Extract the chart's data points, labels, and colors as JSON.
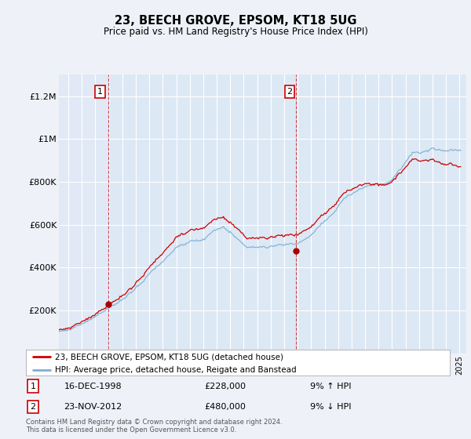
{
  "title": "23, BEECH GROVE, EPSOM, KT18 5UG",
  "subtitle": "Price paid vs. HM Land Registry's House Price Index (HPI)",
  "legend_line1": "23, BEECH GROVE, EPSOM, KT18 5UG (detached house)",
  "legend_line2": "HPI: Average price, detached house, Reigate and Banstead",
  "annotation1_label": "1",
  "annotation1_date": "16-DEC-1998",
  "annotation1_price": "£228,000",
  "annotation1_hpi": "9% ↑ HPI",
  "annotation2_label": "2",
  "annotation2_date": "23-NOV-2012",
  "annotation2_price": "£480,000",
  "annotation2_hpi": "9% ↓ HPI",
  "footer": "Contains HM Land Registry data © Crown copyright and database right 2024.\nThis data is licensed under the Open Government Licence v3.0.",
  "sale1_year": 1998.958,
  "sale1_value": 228000,
  "sale2_year": 2012.9,
  "sale2_value": 480000,
  "hpi_color": "#7bafd4",
  "price_color": "#cc0000",
  "sale_dot_color": "#aa0000",
  "background_color": "#eef2f8",
  "plot_bg_color": "#dde8f5",
  "grid_color": "#ffffff",
  "highlight_bg": "#e8eef8",
  "ylim": [
    0,
    1300000
  ],
  "xlim_start": 1995.3,
  "xlim_end": 2025.5,
  "dashed_line1_year": 1998.958,
  "dashed_line2_year": 2012.9,
  "xtick_start": 1996,
  "xtick_end": 2025
}
